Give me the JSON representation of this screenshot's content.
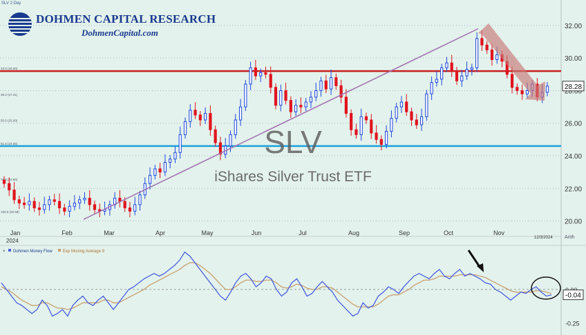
{
  "chart_data": {
    "type": "candlestick",
    "symbol_header": "SLV 2 Day",
    "brand": {
      "name": "DOHMEN CAPITAL RESEARCH",
      "url": "DohmenCapital.com"
    },
    "title": "SLV",
    "subtitle": "iShares Silver Trust ETF",
    "colors": {
      "up": "#1f46e0",
      "down": "#e0141e",
      "resistance": "#c81e1e",
      "support": "#19a0dc",
      "trendline": "#a070b0",
      "arrow": "#c87878",
      "money_flow": "#4a5ee0",
      "ema": "#c8a070",
      "background": "#e3f2ec"
    },
    "price_axis": {
      "ticks": [
        "32.00",
        "30.00",
        "28.00",
        "26.00",
        "24.00",
        "22.00",
        "20.00"
      ],
      "ylim": [
        19.6,
        32.8
      ],
      "last_price": "28.28"
    },
    "x_axis": {
      "months": [
        "Jan",
        "Feb",
        "Mar",
        "Apr",
        "May",
        "Jun",
        "Jul",
        "Aug",
        "Sep",
        "Oct",
        "Nov"
      ],
      "year": "2024",
      "end_date": "12/3/2024",
      "scale": "Arith"
    },
    "levels": {
      "resistance": 29.2,
      "support": 24.6,
      "trendline_from": [
        "Feb",
        20.1
      ],
      "trendline_to": [
        "Oct",
        31.8
      ]
    },
    "series": [
      {
        "name": "price",
        "closes": [
          22.3,
          21.9,
          21.3,
          21.1,
          21.0,
          21.2,
          20.8,
          20.7,
          21.0,
          21.3,
          21.2,
          20.8,
          20.6,
          20.9,
          21.1,
          21.3,
          21.4,
          21.0,
          20.7,
          20.6,
          20.7,
          21.0,
          21.4,
          21.2,
          20.8,
          20.6,
          21.0,
          21.6,
          22.3,
          22.8,
          23.2,
          23.0,
          23.6,
          23.8,
          24.2,
          25.3,
          26.1,
          26.8,
          26.5,
          26.2,
          26.6,
          25.6,
          24.8,
          24.1,
          24.6,
          25.3,
          26.2,
          27.0,
          28.4,
          29.4,
          28.9,
          29.1,
          29.0,
          28.2,
          27.1,
          28.0,
          27.4,
          26.7,
          27.1,
          27.0,
          27.3,
          27.6,
          28.0,
          28.6,
          28.1,
          28.8,
          28.3,
          27.6,
          26.6,
          25.6,
          25.3,
          26.4,
          26.2,
          25.4,
          25.0,
          24.7,
          25.5,
          26.3,
          27.0,
          27.3,
          26.7,
          26.2,
          25.9,
          26.4,
          27.8,
          28.5,
          28.7,
          29.4,
          29.7,
          29.2,
          28.6,
          28.9,
          29.3,
          29.4,
          31.2,
          30.8,
          30.5,
          29.9,
          30.2,
          29.8,
          29.0,
          28.2,
          28.0,
          27.8,
          28.0,
          28.4,
          27.6,
          27.9,
          28.28
        ]
      },
      {
        "name": "Dohmen Money Flow",
        "values": [
          0.05,
          0.0,
          -0.05,
          -0.1,
          -0.12,
          -0.15,
          -0.18,
          -0.15,
          -0.08,
          -0.12,
          -0.2,
          -0.18,
          -0.15,
          -0.2,
          -0.12,
          -0.08,
          -0.05,
          -0.1,
          -0.12,
          -0.08,
          -0.05,
          -0.1,
          -0.15,
          -0.1,
          -0.05,
          0.0,
          0.02,
          0.05,
          0.08,
          0.1,
          0.12,
          0.1,
          0.12,
          0.15,
          0.18,
          0.22,
          0.28,
          0.25,
          0.2,
          0.15,
          0.1,
          0.05,
          0.0,
          -0.05,
          -0.08,
          -0.02,
          0.05,
          0.1,
          0.12,
          0.08,
          0.02,
          0.05,
          0.1,
          0.08,
          0.0,
          -0.05,
          -0.02,
          0.05,
          0.08,
          0.02,
          -0.05,
          -0.03,
          0.02,
          0.06,
          0.02,
          -0.02,
          -0.08,
          -0.12,
          -0.16,
          -0.2,
          -0.18,
          -0.1,
          -0.14,
          -0.12,
          -0.05,
          -0.02,
          0.02,
          0.0,
          -0.03,
          0.02,
          0.06,
          0.1,
          0.12,
          0.1,
          0.08,
          0.12,
          0.15,
          0.1,
          0.08,
          0.12,
          0.15,
          0.1,
          0.12,
          0.1,
          0.08,
          0.05,
          0.04,
          0.0,
          -0.02,
          -0.05,
          -0.08,
          -0.05,
          -0.02,
          -0.03,
          0.0,
          0.02,
          -0.02,
          -0.05,
          -0.04
        ]
      },
      {
        "name": "Exp Moving Average 9",
        "values": [
          0.02,
          0.0,
          -0.02,
          -0.05,
          -0.08,
          -0.1,
          -0.12,
          -0.12,
          -0.1,
          -0.1,
          -0.12,
          -0.14,
          -0.14,
          -0.15,
          -0.14,
          -0.12,
          -0.1,
          -0.1,
          -0.1,
          -0.1,
          -0.08,
          -0.08,
          -0.1,
          -0.1,
          -0.08,
          -0.06,
          -0.04,
          -0.02,
          0.0,
          0.03,
          0.05,
          0.07,
          0.09,
          0.11,
          0.13,
          0.15,
          0.18,
          0.2,
          0.2,
          0.18,
          0.15,
          0.12,
          0.08,
          0.04,
          0.0,
          0.0,
          0.02,
          0.05,
          0.07,
          0.07,
          0.06,
          0.06,
          0.07,
          0.07,
          0.05,
          0.02,
          0.01,
          0.02,
          0.04,
          0.03,
          0.01,
          0.0,
          0.0,
          0.02,
          0.02,
          0.01,
          -0.02,
          -0.05,
          -0.08,
          -0.11,
          -0.13,
          -0.13,
          -0.13,
          -0.13,
          -0.11,
          -0.08,
          -0.05,
          -0.04,
          -0.04,
          -0.02,
          0.0,
          0.03,
          0.05,
          0.07,
          0.07,
          0.08,
          0.1,
          0.1,
          0.1,
          0.1,
          0.11,
          0.11,
          0.11,
          0.11,
          0.1,
          0.09,
          0.07,
          0.05,
          0.03,
          0.01,
          -0.01,
          -0.02,
          -0.02,
          -0.02,
          -0.02,
          -0.01,
          -0.01,
          -0.02,
          -0.03
        ]
      }
    ],
    "indicator_axis": {
      "ticks": [
        "0.00",
        "-0.25"
      ],
      "ylim": [
        -0.3,
        0.32
      ],
      "last_value": "-0.04"
    },
    "indicator_legend": [
      "Dohmen Money Flow",
      "Exp Moving Average 9"
    ],
    "left_labels": [
      "33.9 (29.00)",
      "38.2 (27.31)",
      "50.0 (25.00)",
      "61.8 (24.55)",
      "78.6 (22.66)",
      "100.0 (20.58)"
    ]
  }
}
